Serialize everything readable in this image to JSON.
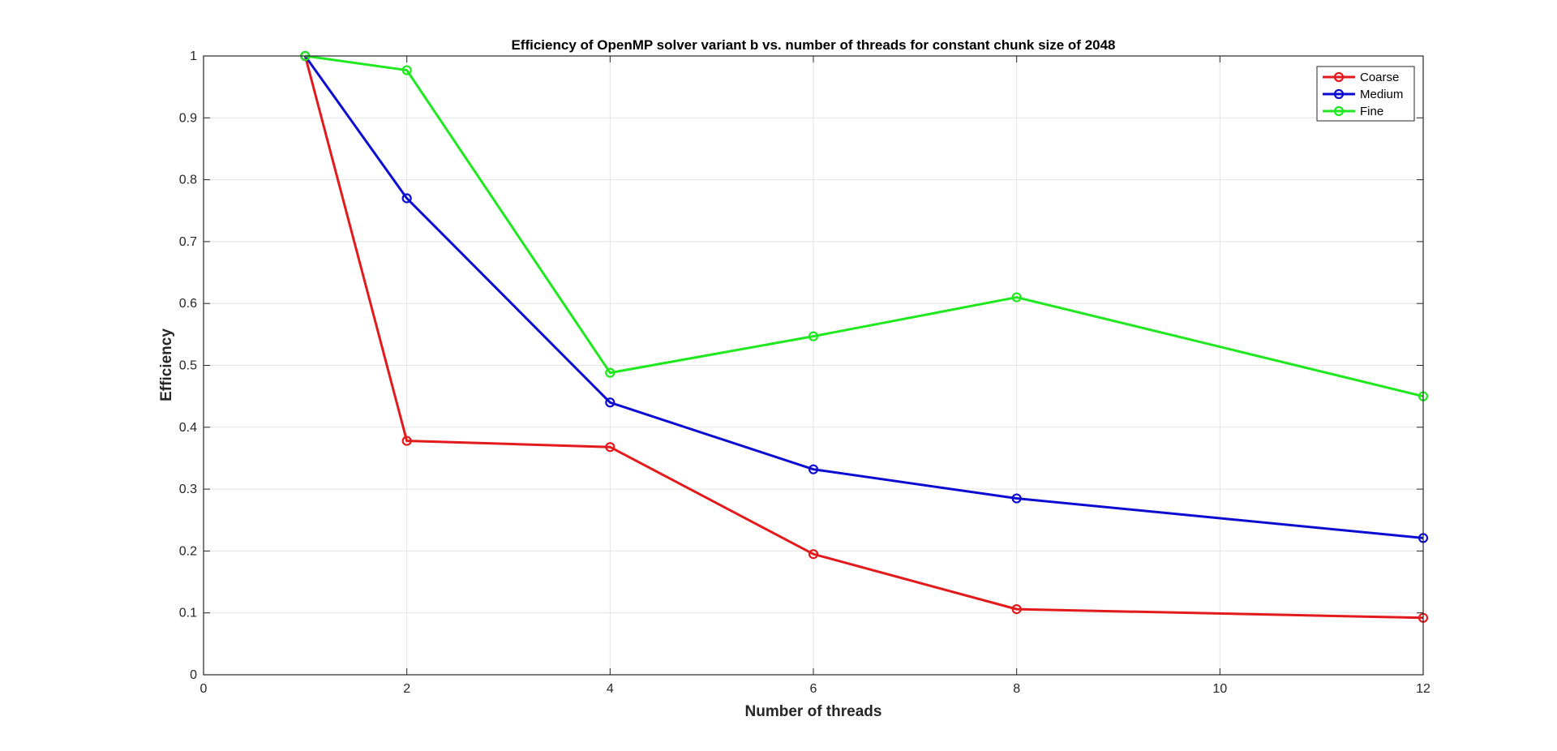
{
  "chart_data": {
    "type": "line",
    "title": "Efficiency of OpenMP solver variant b vs. number of threads for constant chunk size of 2048",
    "xlabel": "Number of threads",
    "ylabel": "Efficiency",
    "xlim": [
      0,
      12
    ],
    "ylim": [
      0,
      1
    ],
    "xticks": [
      "0",
      "2",
      "4",
      "6",
      "8",
      "10",
      "12"
    ],
    "yticks": [
      "0",
      "0.1",
      "0.2",
      "0.3",
      "0.4",
      "0.5",
      "0.6",
      "0.7",
      "0.8",
      "0.9",
      "1"
    ],
    "grid": true,
    "legend_position": "top-right",
    "x": [
      1,
      2,
      4,
      6,
      8,
      12
    ],
    "series": [
      {
        "name": "Coarse",
        "color": "#e31a1c",
        "values": [
          1.0,
          0.378,
          0.368,
          0.195,
          0.106,
          0.092
        ]
      },
      {
        "name": "Medium",
        "color": "#0b0bd1",
        "values": [
          1.0,
          0.77,
          0.44,
          0.332,
          0.285,
          0.221
        ]
      },
      {
        "name": "Fine",
        "color": "#1fe81f",
        "values": [
          1.0,
          0.977,
          0.488,
          0.547,
          0.61,
          0.45
        ]
      }
    ]
  }
}
